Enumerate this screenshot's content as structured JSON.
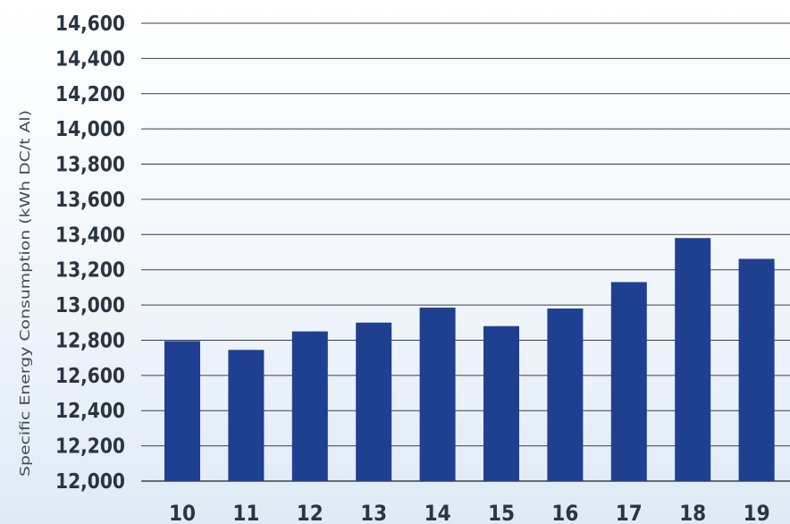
{
  "chart_data": {
    "type": "bar",
    "title": "",
    "xlabel": "",
    "ylabel": "Specific Energy Consumption (kWh DC/t Al)",
    "categories": [
      "10",
      "11",
      "12",
      "13",
      "14",
      "15",
      "16",
      "17",
      "18",
      "19"
    ],
    "values": [
      12795,
      12745,
      12850,
      12900,
      12985,
      12880,
      12980,
      13130,
      13380,
      13262
    ],
    "ylim": [
      12000,
      14600
    ],
    "yticks": [
      "12,000",
      "12,200",
      "12,400",
      "12,600",
      "12,800",
      "13,000",
      "13,200",
      "13,400",
      "13,600",
      "13,800",
      "14,000",
      "14,200",
      "14,400",
      "14,600"
    ],
    "grid": true,
    "legend": "none",
    "colors": {
      "bar": "#1f3f91",
      "grid": "#3a3f46",
      "text": "#2a3442",
      "axis_label": "#3e4a58"
    }
  }
}
